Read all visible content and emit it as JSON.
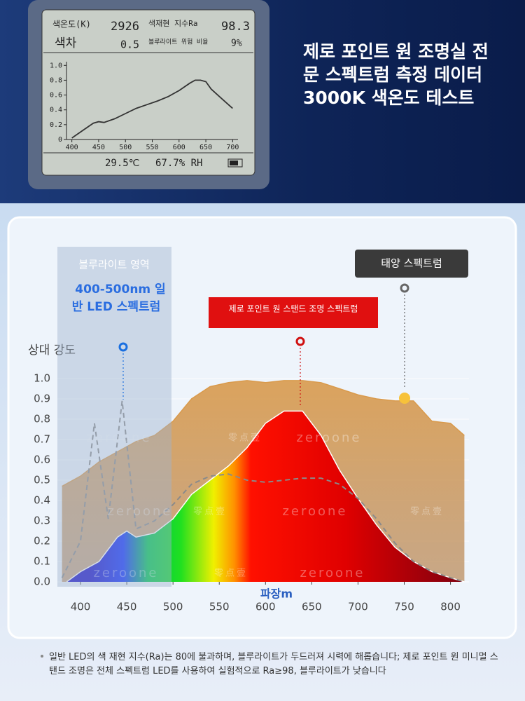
{
  "headline": [
    "제로 포인트 원 조명실 전",
    "문 스펙트럼 측정 데이터",
    "3000K 색온도 테스트"
  ],
  "meter": {
    "cct_label": "색온도(K)",
    "cct": "2926",
    "ra_label": "색재현 지수Ra",
    "ra": "98.3",
    "duv_label": "색차",
    "duv": "0.5",
    "blue_label": "블루라이트 위험 비율",
    "blue": "9%",
    "temperature": "29.5℃",
    "humidity": "67.7% RH"
  },
  "chart_data": [
    {
      "type": "line",
      "color": "#333333",
      "xlim": [
        390,
        710
      ],
      "ylim": [
        0,
        1.05
      ],
      "xticks": [
        400,
        450,
        500,
        550,
        600,
        650,
        700
      ],
      "yticks": [
        0,
        0.2,
        0.4,
        0.6,
        0.8,
        {
          "value": 1,
          "label": "1.0"
        }
      ],
      "series": [
        {
          "x": [
            400,
            420,
            440,
            450,
            460,
            480,
            500,
            520,
            540,
            560,
            580,
            600,
            620,
            630,
            640,
            650,
            660,
            680,
            700
          ],
          "values": [
            0.02,
            0.12,
            0.22,
            0.24,
            0.23,
            0.28,
            0.35,
            0.42,
            0.47,
            0.52,
            0.58,
            0.66,
            0.76,
            0.8,
            0.8,
            0.78,
            0.68,
            0.55,
            0.42
          ]
        }
      ]
    },
    {
      "type": "area",
      "y_label": "상대 강도",
      "x_label": "파장m",
      "grid": true,
      "xlim": [
        375,
        820
      ],
      "ylim": [
        0,
        1.1
      ],
      "xticks": [
        400,
        450,
        500,
        550,
        600,
        650,
        700,
        750,
        800
      ],
      "yticks": [
        {
          "value": 0,
          "label": "0.0"
        },
        0.1,
        0.2,
        0.3,
        0.4,
        0.5,
        0.6,
        0.7,
        0.8,
        0.9,
        {
          "value": 1,
          "label": "1.0"
        }
      ],
      "highlight_label": "블루라이트 영역",
      "highlight_note": [
        "400-500nm 일",
        "반 LED 스펙트럼"
      ],
      "watermark": [
        "zeroone",
        "零点壹"
      ],
      "series": [
        {
          "name": "태양 스펙트럼",
          "color": "#d99a4c",
          "dash": false,
          "x": [
            380,
            400,
            420,
            440,
            460,
            480,
            500,
            520,
            540,
            560,
            580,
            600,
            620,
            640,
            660,
            680,
            700,
            720,
            740,
            760,
            780,
            800,
            815
          ],
          "values": [
            0.47,
            0.52,
            0.59,
            0.64,
            0.69,
            0.72,
            0.79,
            0.9,
            0.96,
            0.98,
            0.99,
            0.98,
            0.99,
            0.99,
            0.98,
            0.95,
            0.92,
            0.9,
            0.89,
            0.89,
            0.79,
            0.78,
            0.72
          ]
        },
        {
          "name": "제로 포인트 원 스탠드 조명 스펙트럼",
          "color": "#e00000",
          "dash": false,
          "x": [
            385,
            400,
            420,
            440,
            450,
            460,
            480,
            500,
            520,
            540,
            560,
            580,
            600,
            620,
            640,
            660,
            680,
            700,
            720,
            740,
            760,
            780,
            800,
            815
          ],
          "values": [
            0,
            0.05,
            0.1,
            0.22,
            0.25,
            0.22,
            0.24,
            0.31,
            0.43,
            0.5,
            0.57,
            0.66,
            0.78,
            0.84,
            0.84,
            0.72,
            0.55,
            0.41,
            0.28,
            0.17,
            0.1,
            0.05,
            0.02,
            0
          ]
        },
        {
          "color": "#8a8a8a",
          "dash": true,
          "x": [
            380,
            400,
            415,
            430,
            445,
            460,
            480,
            500,
            520,
            540,
            560,
            580,
            600,
            620,
            640,
            660,
            680,
            700,
            720,
            740,
            760,
            780,
            800,
            815
          ],
          "values": [
            0.02,
            0.2,
            0.78,
            0.31,
            0.89,
            0.26,
            0.3,
            0.38,
            0.48,
            0.52,
            0.53,
            0.5,
            0.49,
            0.5,
            0.51,
            0.51,
            0.48,
            0.41,
            0.31,
            0.19,
            0.1,
            0.05,
            0.02,
            0
          ]
        }
      ]
    }
  ],
  "footnote": "일반 LED의 색 재현 지수(Ra)는 80에 불과하며, 블루라이트가 두드러져 시력에 해롭습니다; 제로 포인트 원 미니멀 스탠드 조명은 전체 스펙트럼 LED를 사용하여 실험적으로 Ra≥98, 블루라이트가 낮습니다"
}
